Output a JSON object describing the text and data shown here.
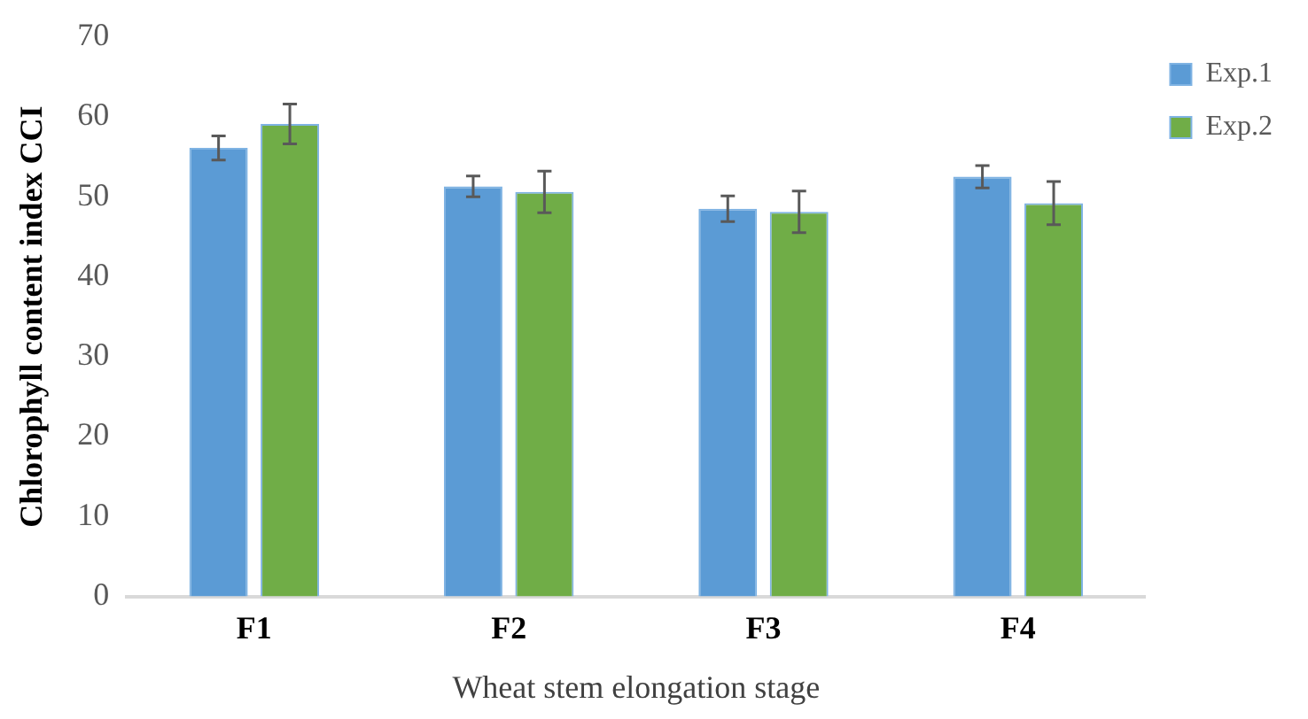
{
  "chart_data": {
    "type": "bar",
    "xlabel": "Wheat stem elongation stage",
    "ylabel": "Chlorophyll content index CCI",
    "categories": [
      "F1",
      "F2",
      "F3",
      "F4"
    ],
    "series": [
      {
        "name": "Exp.1",
        "color": "#5b9bd5",
        "values": [
          56.1,
          51.3,
          48.5,
          52.5
        ],
        "errors": [
          1.5,
          1.3,
          1.6,
          1.4
        ]
      },
      {
        "name": "Exp.2",
        "color": "#70ad47",
        "values": [
          59.1,
          50.6,
          48.1,
          49.2
        ],
        "errors": [
          2.5,
          2.6,
          2.6,
          2.7
        ]
      }
    ],
    "ylim": [
      0,
      70
    ],
    "yticks": [
      0,
      10,
      20,
      30,
      40,
      50,
      60,
      70
    ],
    "grid": false,
    "legend": "top right"
  }
}
